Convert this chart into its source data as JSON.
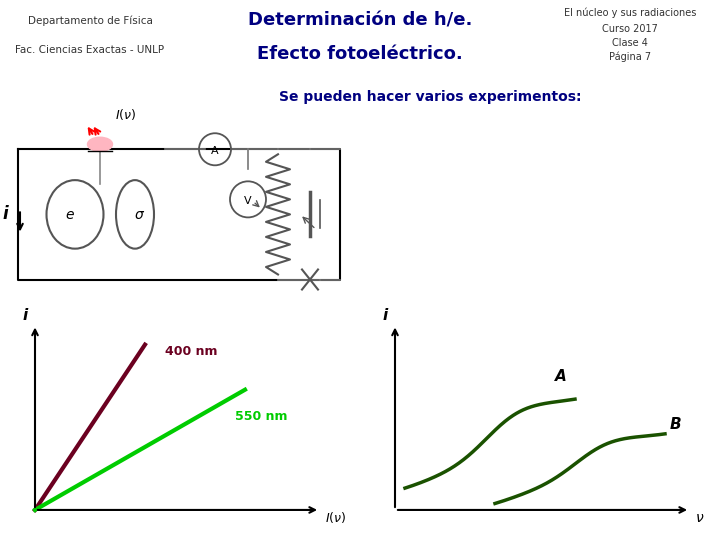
{
  "header_bg": "#F4A460",
  "left_bg": "#FFFACD",
  "right_bg": "#FFFACD",
  "center_title1": "Determinación de h/e.",
  "center_title2": "Efecto fotoeléctrico.",
  "left_line1": "Departamento de Física",
  "left_line2": "Fac. Ciencias Exactas - UNLP",
  "right_line1": "El núcleo y sus radiaciones",
  "right_line2": "Curso 2017",
  "right_line3": "Clase 4",
  "right_line4": "Página 7",
  "body_bg": "#FFFFFF",
  "main_text": "Se pueden hacer varios experimentos:",
  "main_text_color": "#000080",
  "label_400nm": "400 nm",
  "label_550nm": "550 nm",
  "color_400nm": "#6B0020",
  "color_550nm": "#00CC00",
  "dark_green": "#1A5200",
  "label_A": "A",
  "label_B": "B"
}
